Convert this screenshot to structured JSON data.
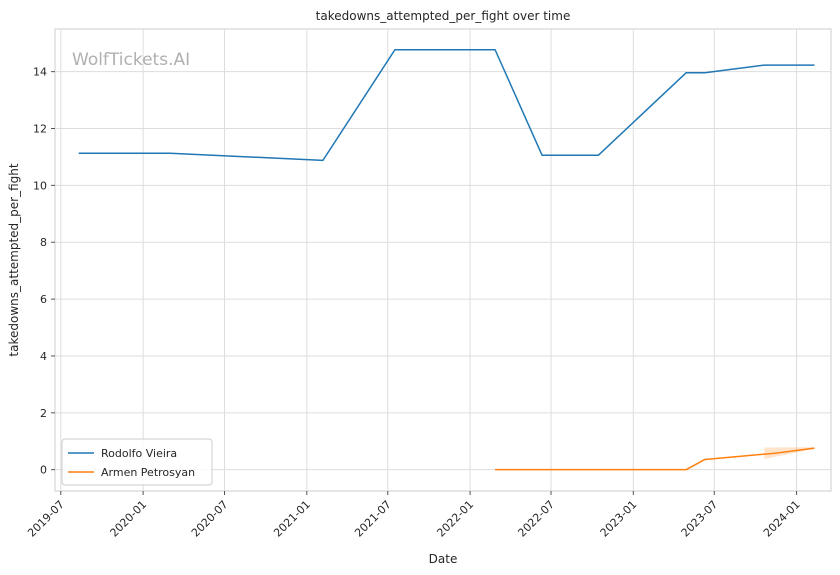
{
  "chart_data": {
    "type": "line",
    "title": "takedowns_attempted_per_fight over time",
    "xlabel": "Date",
    "ylabel": "takedowns_attempted_per_fight",
    "watermark": "WolfTickets.AI",
    "x_ticks": [
      "2019-07",
      "2020-01",
      "2020-07",
      "2021-01",
      "2021-07",
      "2022-01",
      "2022-07",
      "2023-01",
      "2023-07",
      "2024-01"
    ],
    "xlim": [
      "2019-06-18",
      "2024-03-18"
    ],
    "y_ticks": [
      0,
      2,
      4,
      6,
      8,
      10,
      12,
      14
    ],
    "ylim": [
      -0.75,
      15.5
    ],
    "grid": true,
    "legend_position": "lower-left",
    "series": [
      {
        "name": "Rodolfo Vieira",
        "color": "#1f77b4",
        "points": [
          [
            "2019-08-10",
            11.13
          ],
          [
            "2020-03-01",
            11.13
          ],
          [
            "2021-02-06",
            10.88
          ],
          [
            "2021-07-17",
            14.77
          ],
          [
            "2022-02-26",
            14.77
          ],
          [
            "2022-06-11",
            11.06
          ],
          [
            "2022-10-15",
            11.06
          ],
          [
            "2023-04-29",
            13.96
          ],
          [
            "2023-06-10",
            13.96
          ],
          [
            "2023-10-21",
            14.23
          ],
          [
            "2024-02-10",
            14.23
          ]
        ]
      },
      {
        "name": "Armen Petrosyan",
        "color": "#ff7f0e",
        "points": [
          [
            "2022-02-26",
            0.0
          ],
          [
            "2023-04-29",
            0.0
          ],
          [
            "2023-06-10",
            0.36
          ],
          [
            "2023-11-15",
            0.58
          ],
          [
            "2024-02-10",
            0.76
          ]
        ],
        "band": [
          [
            "2023-10-21",
            0.38,
            0.78
          ],
          [
            "2024-02-10",
            0.73,
            0.79
          ]
        ]
      }
    ]
  }
}
